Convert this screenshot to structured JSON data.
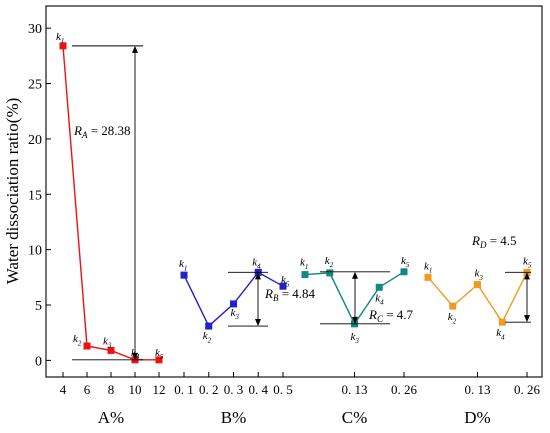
{
  "chart_data": {
    "type": "line",
    "ylabel": "Water dissociation ratio(%)",
    "ylim": [
      -1.5,
      32
    ],
    "yticks": [
      0,
      5,
      10,
      15,
      20,
      25,
      30
    ],
    "panels": [
      {
        "name": "A%",
        "color": "#ee1111",
        "x": [
          4,
          6,
          8,
          10,
          12
        ],
        "xticks": [
          "4",
          "6",
          "8",
          "10",
          "12"
        ],
        "values": [
          28.4,
          1.3,
          0.9,
          0.05,
          0.05
        ],
        "point_labels": [
          "k1",
          "k2",
          "k3",
          "k4",
          "k5"
        ],
        "range_label": "R_A = 28.38",
        "range_value": 28.38
      },
      {
        "name": "B%",
        "color": "#2222cc",
        "x": [
          0.1,
          0.2,
          0.3,
          0.4,
          0.5
        ],
        "xticks": [
          "0. 1",
          "0. 2",
          "0. 3",
          "0. 4",
          "0. 5"
        ],
        "values": [
          7.7,
          3.1,
          5.1,
          7.95,
          6.7
        ],
        "point_labels": [
          "k1",
          "k2",
          "k3",
          "k4",
          "k5"
        ],
        "range_label": "R_B = 4.84",
        "range_value": 4.84
      },
      {
        "name": "C%",
        "color": "#108a80",
        "x": [
          0.0,
          0.065,
          0.13,
          0.195,
          0.26
        ],
        "xticks": [
          "0. 13",
          "0. 26"
        ],
        "xtick_positions": [
          0.13,
          0.26
        ],
        "values": [
          7.75,
          7.9,
          3.3,
          6.6,
          8.0
        ],
        "point_labels": [
          "k1",
          "k2",
          "k3",
          "k4",
          "k5"
        ],
        "range_label": "R_C = 4.7",
        "range_value": 4.7
      },
      {
        "name": "D%",
        "color": "#f39a1e",
        "x": [
          0.0,
          0.065,
          0.13,
          0.195,
          0.26
        ],
        "xticks": [
          "0. 13",
          "0. 26"
        ],
        "xtick_positions": [
          0.13,
          0.26
        ],
        "values": [
          7.5,
          4.9,
          6.85,
          3.45,
          7.95
        ],
        "point_labels": [
          "k1",
          "k2",
          "k3",
          "k4",
          "k5"
        ],
        "range_label": "R_D = 4.5",
        "range_value": 4.5
      }
    ]
  }
}
